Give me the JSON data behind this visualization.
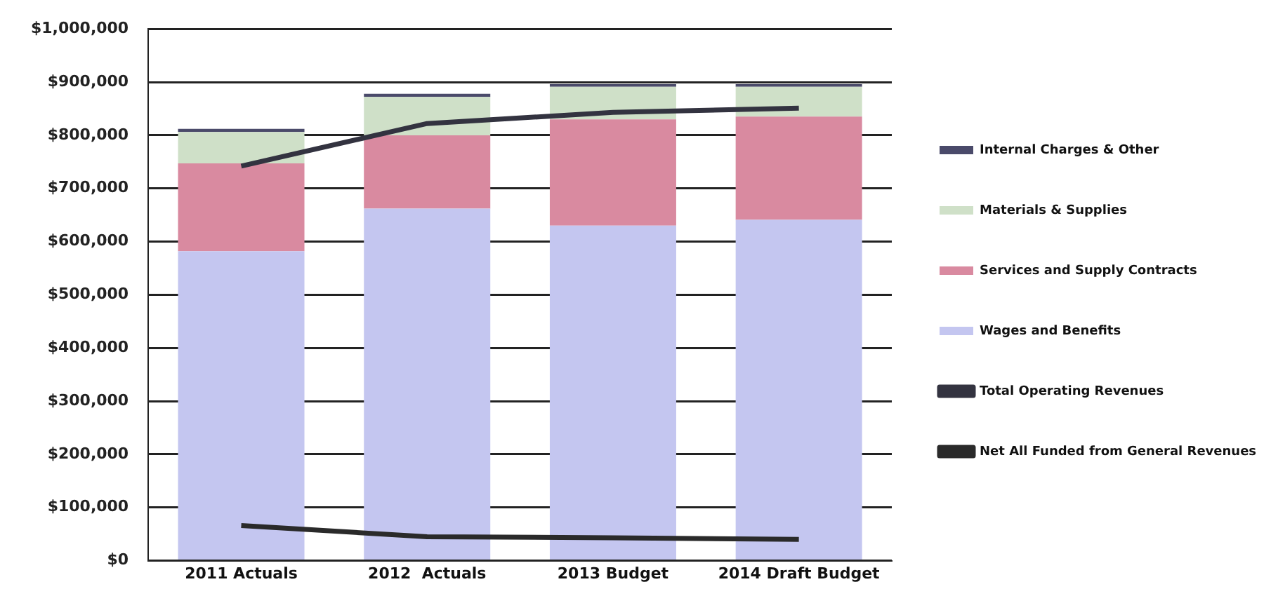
{
  "chart_data": {
    "type": "bar",
    "stacked": true,
    "categories": [
      "2011 Actuals",
      "2012  Actuals",
      "2013 Budget",
      "2014 Draft Budget"
    ],
    "series": [
      {
        "name": "Wages and Benefits",
        "color": "#c4c6f0",
        "values": [
          582000,
          662000,
          630000,
          641000
        ]
      },
      {
        "name": "Services and Supply Contracts",
        "color": "#d98aa0",
        "values": [
          165000,
          138000,
          200000,
          194000
        ]
      },
      {
        "name": "Materials & Supplies",
        "color": "#cfe0c8",
        "values": [
          59000,
          72000,
          61000,
          56000
        ]
      },
      {
        "name": "Internal Charges & Other",
        "color": "#4a4a6a",
        "values": [
          6000,
          6000,
          5000,
          5000
        ]
      },
      {
        "name": "Total Operating Revenues",
        "type": "line",
        "color": "#333340",
        "values": [
          742000,
          822000,
          843000,
          851000
        ]
      },
      {
        "name": "Net All Funded from General Revenues",
        "type": "line",
        "color": "#2a2a2a",
        "values": [
          66000,
          45000,
          43000,
          40000
        ]
      }
    ],
    "ylim": [
      0,
      1000000
    ],
    "yticks": [
      {
        "value": 0,
        "label": "$0"
      },
      {
        "value": 100000,
        "label": "$100,000"
      },
      {
        "value": 200000,
        "label": "$200,000"
      },
      {
        "value": 300000,
        "label": "$300,000"
      },
      {
        "value": 400000,
        "label": "$400,000"
      },
      {
        "value": 500000,
        "label": "$500,000"
      },
      {
        "value": 600000,
        "label": "$600,000"
      },
      {
        "value": 700000,
        "label": "$700,000"
      },
      {
        "value": 800000,
        "label": "$800,000"
      },
      {
        "value": 900000,
        "label": "$900,000"
      },
      {
        "value": 1000000,
        "label": "$1,000,000"
      }
    ],
    "grid": "y",
    "legend": "right",
    "marker": "none",
    "line_style": "solid"
  }
}
